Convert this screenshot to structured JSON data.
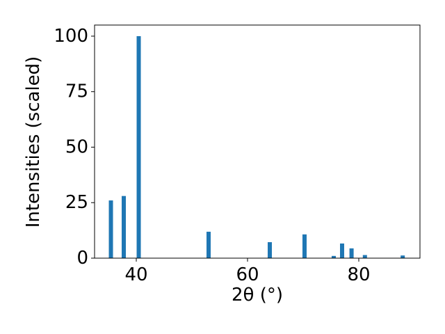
{
  "chart_data": {
    "type": "bar",
    "x": [
      35.44,
      37.75,
      40.44,
      53.0,
      64.0,
      70.25,
      75.5,
      77.0,
      78.7,
      81.1,
      87.9
    ],
    "values": [
      26,
      28,
      100,
      11.9,
      7.2,
      10.7,
      1.0,
      6.6,
      4.4,
      1.4,
      1.2
    ],
    "color": "#1f77b4",
    "xlim": [
      32.5,
      91
    ],
    "xticks": [
      40,
      60,
      80
    ],
    "ylim": [
      0,
      105
    ],
    "yticks": [
      0,
      25,
      50,
      75,
      100
    ],
    "xlabel": "2θ (°)",
    "ylabel": "Intensities (scaled)"
  }
}
